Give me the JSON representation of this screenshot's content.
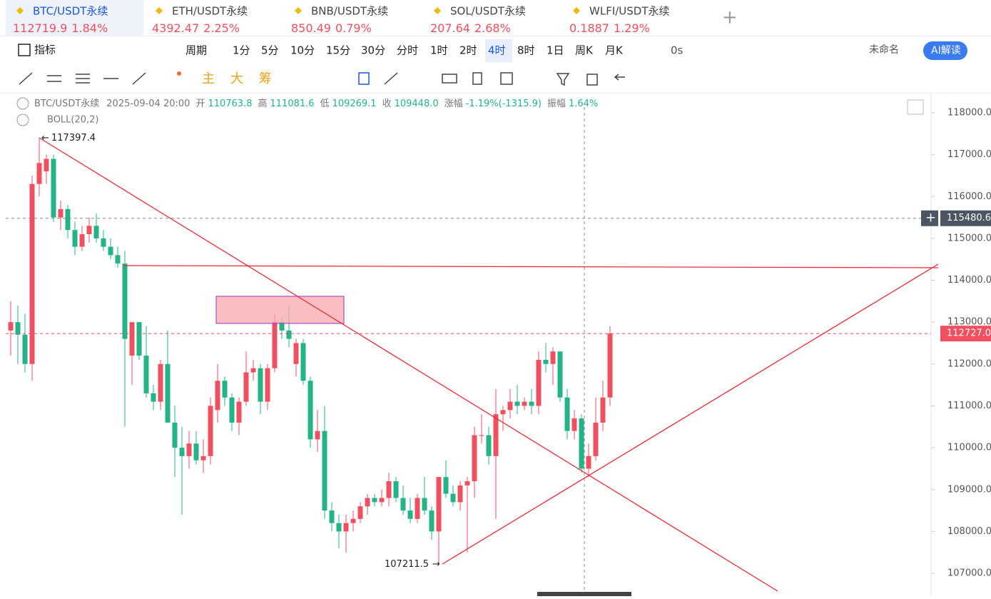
{
  "tabs": [
    {
      "symbol": "BTC/USDT永续",
      "price": "112719.9",
      "change": "1.84%"
    },
    {
      "symbol": "ETH/USDT永续",
      "price": "4392.47",
      "change": "2.25%"
    },
    {
      "symbol": "BNB/USDT永续",
      "price": "850.49",
      "change": "0.79%"
    },
    {
      "symbol": "SOL/USDT永续",
      "price": "207.64",
      "change": "2.68%"
    },
    {
      "symbol": "WLFI/USDT永续",
      "price": "0.1887",
      "change": "1.29%"
    }
  ],
  "toolbar": {
    "indicator": "指标",
    "period": "周期",
    "intervals": [
      "1分",
      "5分",
      "10分",
      "15分",
      "30分",
      "分时",
      "1时",
      "2时",
      "4时",
      "8时",
      "1日",
      "周K",
      "月K"
    ],
    "active_interval": "4时",
    "countdown": "0s",
    "layout_name": "未命名",
    "ai": "AI解读"
  },
  "draw_toolbar": [
    "主",
    "大",
    "筹"
  ],
  "info": {
    "symbol": "BTC/USDT永续",
    "time": "2025-09-04 20:00",
    "fields": [
      [
        "开",
        "110763.8"
      ],
      [
        "高",
        "111081.6"
      ],
      [
        "低",
        "109269.1"
      ],
      [
        "收",
        "109448.0"
      ],
      [
        "涨幅",
        "-1.19%(-1315.9)"
      ],
      [
        "振幅",
        "1.64%"
      ]
    ],
    "indicator": "BOLL(20,2)"
  },
  "chart_data": {
    "type": "candlestick",
    "ohlc": [
      [
        112800,
        113500,
        112200,
        113000
      ],
      [
        113000,
        113400,
        112000,
        112700
      ],
      [
        112700,
        113200,
        111800,
        112000
      ],
      [
        112000,
        116500,
        111600,
        116300
      ],
      [
        116300,
        117397.4,
        116000,
        116800
      ],
      [
        116600,
        117000,
        116300,
        116900
      ],
      [
        116900,
        117000,
        115400,
        115500
      ],
      [
        115500,
        115900,
        115200,
        115700
      ],
      [
        115700,
        115800,
        115000,
        115200
      ],
      [
        115200,
        115400,
        114600,
        114800
      ],
      [
        114800,
        115300,
        114700,
        115100
      ],
      [
        115100,
        115500,
        114900,
        115300
      ],
      [
        115300,
        115600,
        114900,
        115000
      ],
      [
        115000,
        115200,
        114700,
        114800
      ],
      [
        114800,
        115000,
        114500,
        114600
      ],
      [
        114600,
        114800,
        114300,
        114400
      ],
      [
        114400,
        114700,
        110500,
        112600
      ],
      [
        112200,
        113000,
        111500,
        113000
      ],
      [
        113000,
        113000,
        112100,
        112200
      ],
      [
        112200,
        112900,
        111200,
        111300
      ],
      [
        111300,
        111500,
        110900,
        111100
      ],
      [
        111100,
        112100,
        110900,
        112000
      ],
      [
        112000,
        112800,
        110600,
        110600
      ],
      [
        110600,
        111000,
        109300,
        110000
      ],
      [
        110000,
        110500,
        108400,
        109800
      ],
      [
        109800,
        110400,
        109500,
        110100
      ],
      [
        110100,
        110400,
        109600,
        109700
      ],
      [
        109700,
        110200,
        109400,
        109800
      ],
      [
        109800,
        111200,
        109600,
        111000
      ],
      [
        110900,
        112000,
        110600,
        111600
      ],
      [
        111600,
        111700,
        111000,
        111200
      ],
      [
        111200,
        111300,
        110400,
        110600
      ],
      [
        110600,
        111200,
        110300,
        111100
      ],
      [
        111100,
        112300,
        111000,
        111800
      ],
      [
        111800,
        112100,
        111600,
        111900
      ],
      [
        111900,
        112000,
        110800,
        111100
      ],
      [
        111100,
        112000,
        110900,
        111900
      ],
      [
        111900,
        113200,
        111800,
        113000
      ],
      [
        113000,
        113100,
        112600,
        112800
      ],
      [
        112800,
        113400,
        112400,
        112600
      ],
      [
        112000,
        112600,
        111700,
        112500
      ],
      [
        112500,
        112600,
        111500,
        111600
      ],
      [
        111600,
        111700,
        110000,
        110200
      ],
      [
        110200,
        110900,
        109900,
        110400
      ],
      [
        110400,
        111000,
        108300,
        108500
      ],
      [
        108500,
        108700,
        108000,
        108200
      ],
      [
        108200,
        108400,
        107600,
        108000
      ],
      [
        108000,
        108400,
        107500,
        108200
      ],
      [
        108200,
        108500,
        108000,
        108300
      ],
      [
        108300,
        108700,
        108200,
        108600
      ],
      [
        108600,
        108900,
        108400,
        108800
      ],
      [
        108800,
        108900,
        108600,
        108700
      ],
      [
        108700,
        109000,
        108600,
        108800
      ],
      [
        108800,
        109400,
        108600,
        109200
      ],
      [
        109200,
        109300,
        108700,
        108800
      ],
      [
        108800,
        109100,
        108400,
        108500
      ],
      [
        108500,
        108800,
        108200,
        108300
      ],
      [
        108300,
        108900,
        108200,
        108800
      ],
      [
        108800,
        109300,
        108400,
        108500
      ],
      [
        108500,
        108600,
        107800,
        108000
      ],
      [
        108000,
        109300,
        107211.5,
        109300
      ],
      [
        109300,
        109700,
        108800,
        108900
      ],
      [
        108900,
        109100,
        108600,
        108700
      ],
      [
        108700,
        109200,
        108500,
        109100
      ],
      [
        109100,
        109300,
        107500,
        109200
      ],
      [
        109200,
        110500,
        108800,
        110300
      ],
      [
        110300,
        110800,
        110100,
        110300
      ],
      [
        110300,
        110500,
        109600,
        109800
      ],
      [
        109800,
        111400,
        108300,
        110800
      ],
      [
        110800,
        111000,
        110400,
        110900
      ],
      [
        110900,
        111400,
        110700,
        111100
      ],
      [
        111100,
        111500,
        110800,
        111000
      ],
      [
        111000,
        111200,
        110900,
        111100
      ],
      [
        111100,
        111400,
        110800,
        111000
      ],
      [
        111000,
        112300,
        110800,
        112100
      ],
      [
        112100,
        112500,
        111800,
        112000
      ],
      [
        112000,
        112400,
        111500,
        112300
      ],
      [
        112300,
        112300,
        111100,
        111200
      ],
      [
        111200,
        111400,
        110200,
        110400
      ],
      [
        110400,
        110900,
        110200,
        110700
      ],
      [
        110700,
        110800,
        109400,
        109500
      ],
      [
        109500,
        110100,
        109300,
        109800
      ],
      [
        109800,
        111200,
        109700,
        110600
      ],
      [
        110600,
        111600,
        110400,
        111200
      ],
      [
        111200,
        112900,
        111000,
        112727
      ]
    ],
    "up_color": "#ef4f5f",
    "down_color": "#22b487",
    "ylim": [
      106455,
      118426
    ],
    "yticks": [
      {
        "value": 107000,
        "label": "107000.0"
      },
      {
        "value": 108000,
        "label": "108000.0"
      },
      {
        "value": 109000,
        "label": "109000.0"
      },
      {
        "value": 110000,
        "label": "110000.0"
      },
      {
        "value": 111000,
        "label": "111000.0"
      },
      {
        "value": 112000,
        "label": "112000.0"
      },
      {
        "value": 113000,
        "label": "113000.0"
      },
      {
        "value": 114000,
        "label": "114000.0"
      },
      {
        "value": 115000,
        "label": "115000.0"
      },
      {
        "value": 116000,
        "label": "116000.0"
      },
      {
        "value": 117000,
        "label": "117000.0"
      },
      {
        "value": 118000,
        "label": "118000.0"
      }
    ],
    "high_marker": 117397.4,
    "low_marker": 107211.5,
    "last_price": {
      "value": 112727.0,
      "label": "112727.0"
    },
    "crosshair_price": {
      "value": 115480.6,
      "label": "115480.6"
    }
  }
}
